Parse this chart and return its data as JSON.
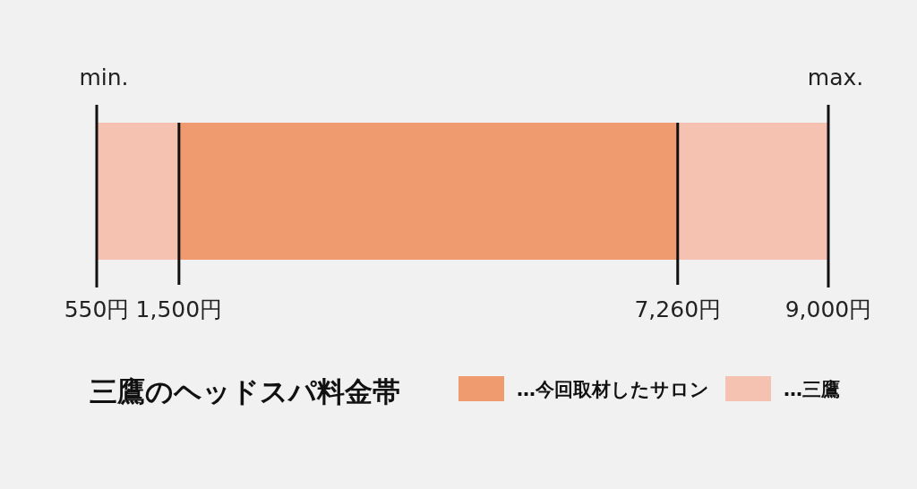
{
  "chart_data": {
    "type": "bar",
    "orientation": "horizontal",
    "title": "三鷹のヘッドスパ料金帯",
    "categories": [
      null
    ],
    "series": [
      {
        "name": "…今回取材したサロン",
        "color": "#f09a70",
        "values": [
          5760
        ],
        "base": [
          1500
        ]
      },
      {
        "name": "…三鷹",
        "color": "#f5c2b1",
        "values": [
          8450
        ],
        "base": [
          550
        ]
      }
    ],
    "xlim": [
      550,
      9000
    ],
    "xticks": [
      {
        "value": 550,
        "label": "550円"
      },
      {
        "value": 1500,
        "label": "1,500円"
      },
      {
        "value": 7260,
        "label": "7,260円"
      },
      {
        "value": 9000,
        "label": "9,000円"
      }
    ],
    "annotations": [
      "min.",
      "max."
    ],
    "grid": "x",
    "legend": "bottom"
  }
}
